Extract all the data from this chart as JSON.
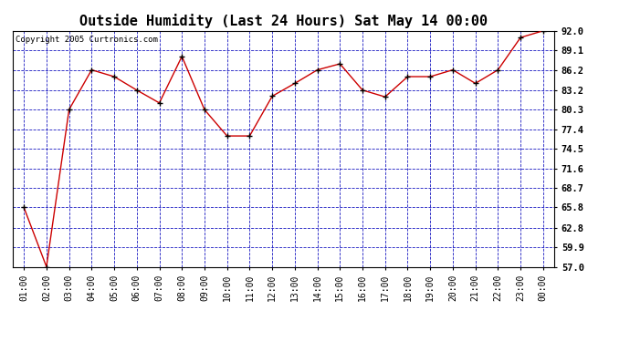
{
  "title": "Outside Humidity (Last 24 Hours) Sat May 14 00:00",
  "copyright": "Copyright 2005 Curtronics.com",
  "x_labels": [
    "01:00",
    "02:00",
    "03:00",
    "04:00",
    "05:00",
    "06:00",
    "07:00",
    "08:00",
    "09:00",
    "10:00",
    "11:00",
    "12:00",
    "13:00",
    "14:00",
    "15:00",
    "16:00",
    "17:00",
    "18:00",
    "19:00",
    "20:00",
    "21:00",
    "22:00",
    "23:00",
    "00:00"
  ],
  "y_values": [
    65.8,
    57.0,
    80.3,
    86.2,
    85.2,
    83.2,
    81.3,
    88.2,
    80.3,
    76.4,
    76.4,
    82.3,
    84.2,
    86.2,
    87.1,
    83.2,
    82.2,
    85.2,
    85.2,
    86.2,
    84.2,
    86.2,
    91.0,
    92.0
  ],
  "y_ticks": [
    57.0,
    59.9,
    62.8,
    65.8,
    68.7,
    71.6,
    74.5,
    77.4,
    80.3,
    83.2,
    86.2,
    89.1,
    92.0
  ],
  "y_min": 57.0,
  "y_max": 92.0,
  "line_color": "#cc0000",
  "marker_color": "#000000",
  "bg_color": "#ffffff",
  "plot_bg_color": "#ffffff",
  "grid_color": "#0000bb",
  "title_fontsize": 11,
  "copyright_fontsize": 6.5,
  "tick_fontsize": 7.5,
  "xtick_fontsize": 7
}
